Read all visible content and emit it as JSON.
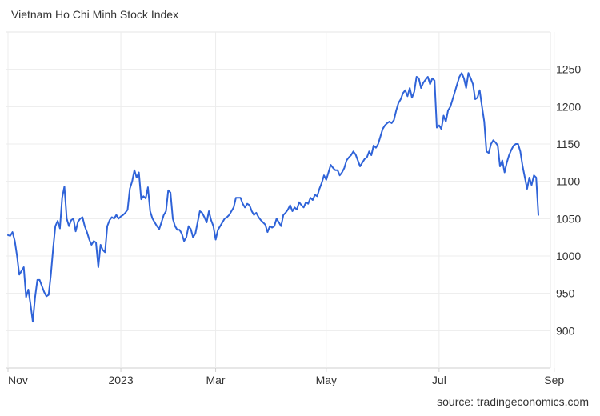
{
  "header": {
    "title": "Vietnam Ho Chi Minh Stock Index"
  },
  "footer": {
    "source": "source: tradingeconomics.com"
  },
  "chart_data": {
    "type": "line",
    "title": "Vietnam Ho Chi Minh Stock Index",
    "xlabel": "",
    "ylabel": "",
    "ylim": [
      850,
      1300
    ],
    "yticks": [
      900,
      950,
      1000,
      1050,
      1100,
      1150,
      1200,
      1250
    ],
    "xticks": [
      {
        "label": "Nov",
        "index": 0
      },
      {
        "label": "2023",
        "index": 50
      },
      {
        "label": "Mar",
        "index": 92
      },
      {
        "label": "May",
        "index": 141
      },
      {
        "label": "Jul",
        "index": 191
      },
      {
        "label": "Sep",
        "index": 242
      }
    ],
    "grid": true,
    "line_color": "#2f63d8",
    "series": [
      {
        "name": "",
        "values": [
          1028,
          1027,
          1032,
          1020,
          1000,
          975,
          980,
          985,
          945,
          955,
          935,
          912,
          945,
          968,
          968,
          960,
          952,
          946,
          948,
          975,
          1010,
          1040,
          1047,
          1037,
          1078,
          1093,
          1050,
          1040,
          1048,
          1050,
          1033,
          1046,
          1050,
          1052,
          1040,
          1032,
          1022,
          1015,
          1020,
          1018,
          985,
          1015,
          1008,
          1005,
          1040,
          1048,
          1052,
          1050,
          1055,
          1050,
          1053,
          1055,
          1058,
          1062,
          1090,
          1100,
          1115,
          1105,
          1112,
          1076,
          1080,
          1077,
          1092,
          1060,
          1050,
          1045,
          1040,
          1036,
          1045,
          1055,
          1060,
          1088,
          1085,
          1050,
          1040,
          1035,
          1035,
          1030,
          1020,
          1025,
          1040,
          1036,
          1025,
          1030,
          1045,
          1060,
          1058,
          1052,
          1045,
          1060,
          1048,
          1040,
          1022,
          1035,
          1040,
          1045,
          1050,
          1052,
          1055,
          1060,
          1065,
          1078,
          1078,
          1078,
          1070,
          1065,
          1070,
          1068,
          1060,
          1055,
          1058,
          1052,
          1048,
          1045,
          1042,
          1032,
          1040,
          1038,
          1040,
          1050,
          1045,
          1040,
          1055,
          1058,
          1062,
          1068,
          1060,
          1065,
          1062,
          1072,
          1068,
          1065,
          1072,
          1070,
          1078,
          1075,
          1082,
          1080,
          1090,
          1098,
          1108,
          1102,
          1112,
          1122,
          1118,
          1115,
          1115,
          1108,
          1112,
          1118,
          1128,
          1132,
          1135,
          1140,
          1136,
          1128,
          1120,
          1125,
          1130,
          1132,
          1140,
          1135,
          1148,
          1145,
          1150,
          1160,
          1170,
          1175,
          1178,
          1180,
          1178,
          1182,
          1195,
          1205,
          1210,
          1218,
          1222,
          1214,
          1225,
          1212,
          1220,
          1240,
          1238,
          1225,
          1232,
          1236,
          1240,
          1230,
          1238,
          1235,
          1172,
          1175,
          1170,
          1188,
          1180,
          1195,
          1200,
          1210,
          1220,
          1230,
          1240,
          1245,
          1238,
          1225,
          1245,
          1238,
          1230,
          1210,
          1212,
          1222,
          1200,
          1180,
          1140,
          1138,
          1150,
          1155,
          1152,
          1148,
          1120,
          1128,
          1112,
          1125,
          1135,
          1142,
          1148,
          1150,
          1150,
          1140,
          1120,
          1105,
          1090,
          1105,
          1095,
          1108,
          1105,
          1055
        ]
      }
    ]
  }
}
